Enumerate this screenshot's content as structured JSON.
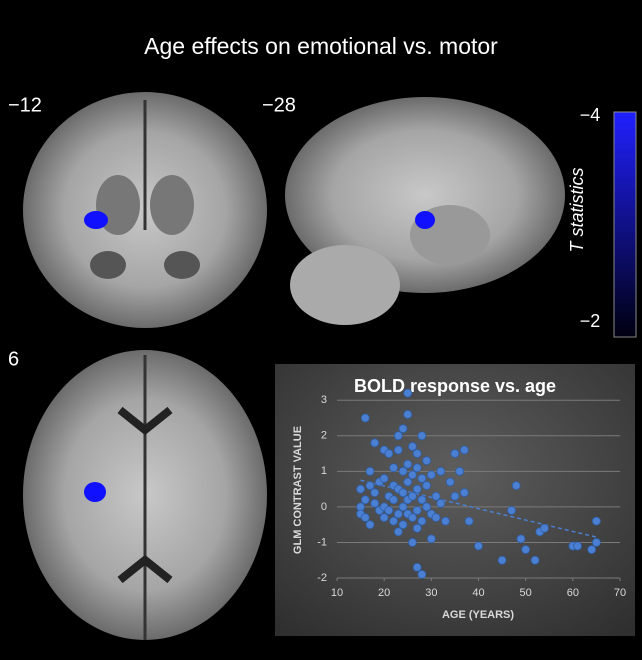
{
  "figure": {
    "title": "Age effects on emotional vs. motor",
    "slices": [
      "−12",
      "−28",
      "6"
    ],
    "colorbar": {
      "label": "T statistics",
      "ticks": [
        {
          "value": -4,
          "label": "−4"
        },
        {
          "value": -2,
          "label": "−2"
        }
      ]
    }
  },
  "chart_data": {
    "type": "scatter",
    "title": "BOLD response vs. age",
    "x_label": "AGE (YEARS)",
    "y_label": "GLM CONTRAST VALUE",
    "x": [
      15,
      15,
      15,
      16,
      16,
      16,
      17,
      17,
      17,
      18,
      18,
      18,
      19,
      19,
      20,
      20,
      20,
      20,
      21,
      21,
      21,
      22,
      22,
      22,
      22,
      23,
      23,
      23,
      23,
      23,
      24,
      24,
      24,
      24,
      24,
      25,
      25,
      25,
      25,
      25,
      25,
      26,
      26,
      26,
      26,
      26,
      27,
      27,
      27,
      27,
      27,
      27,
      28,
      28,
      28,
      28,
      28,
      29,
      29,
      29,
      30,
      30,
      30,
      31,
      31,
      32,
      32,
      33,
      34,
      35,
      35,
      36,
      37,
      37,
      38,
      40,
      45,
      47,
      48,
      49,
      50,
      52,
      53,
      54,
      60,
      61,
      64,
      65,
      65
    ],
    "values": [
      0,
      0.5,
      -0.2,
      2.5,
      -0.3,
      0.2,
      0.6,
      1,
      -0.5,
      1.8,
      0.1,
      0.4,
      -0.1,
      0.7,
      1.6,
      0.8,
      0,
      -0.3,
      0.3,
      1.5,
      -0.1,
      0.6,
      1.1,
      0.2,
      -0.4,
      2.0,
      1.6,
      0.5,
      -0.2,
      -0.7,
      2.2,
      1.0,
      0.4,
      0,
      -0.5,
      3.2,
      2.6,
      1.2,
      0.7,
      0.2,
      -0.2,
      1.7,
      0.9,
      0.3,
      -0.3,
      -1.0,
      1.5,
      1.1,
      0.5,
      -0.1,
      -0.6,
      -1.7,
      2.0,
      0.8,
      0.2,
      -0.4,
      -1.9,
      1.3,
      0.6,
      0,
      0.9,
      -0.2,
      -0.9,
      0.3,
      -0.3,
      1.0,
      0.1,
      -0.4,
      0.7,
      1.5,
      0.3,
      1.0,
      1.6,
      0.4,
      -0.4,
      -1.1,
      -1.5,
      -0.1,
      0.6,
      -0.9,
      -1.2,
      -1.5,
      -0.7,
      -0.6,
      -1.1,
      -1.1,
      -1.2,
      -1.0,
      -0.4
    ],
    "color": "#4a7fd1",
    "trendline": {
      "x": [
        15,
        65
      ],
      "values": [
        0.75,
        -0.85
      ]
    },
    "xlim": [
      10,
      70
    ],
    "xticks": [
      10,
      20,
      30,
      40,
      50,
      60,
      70
    ],
    "ylim": [
      -2,
      3.4
    ],
    "yticks": [
      -2,
      -1,
      0,
      1,
      2,
      3
    ],
    "grid": true
  }
}
